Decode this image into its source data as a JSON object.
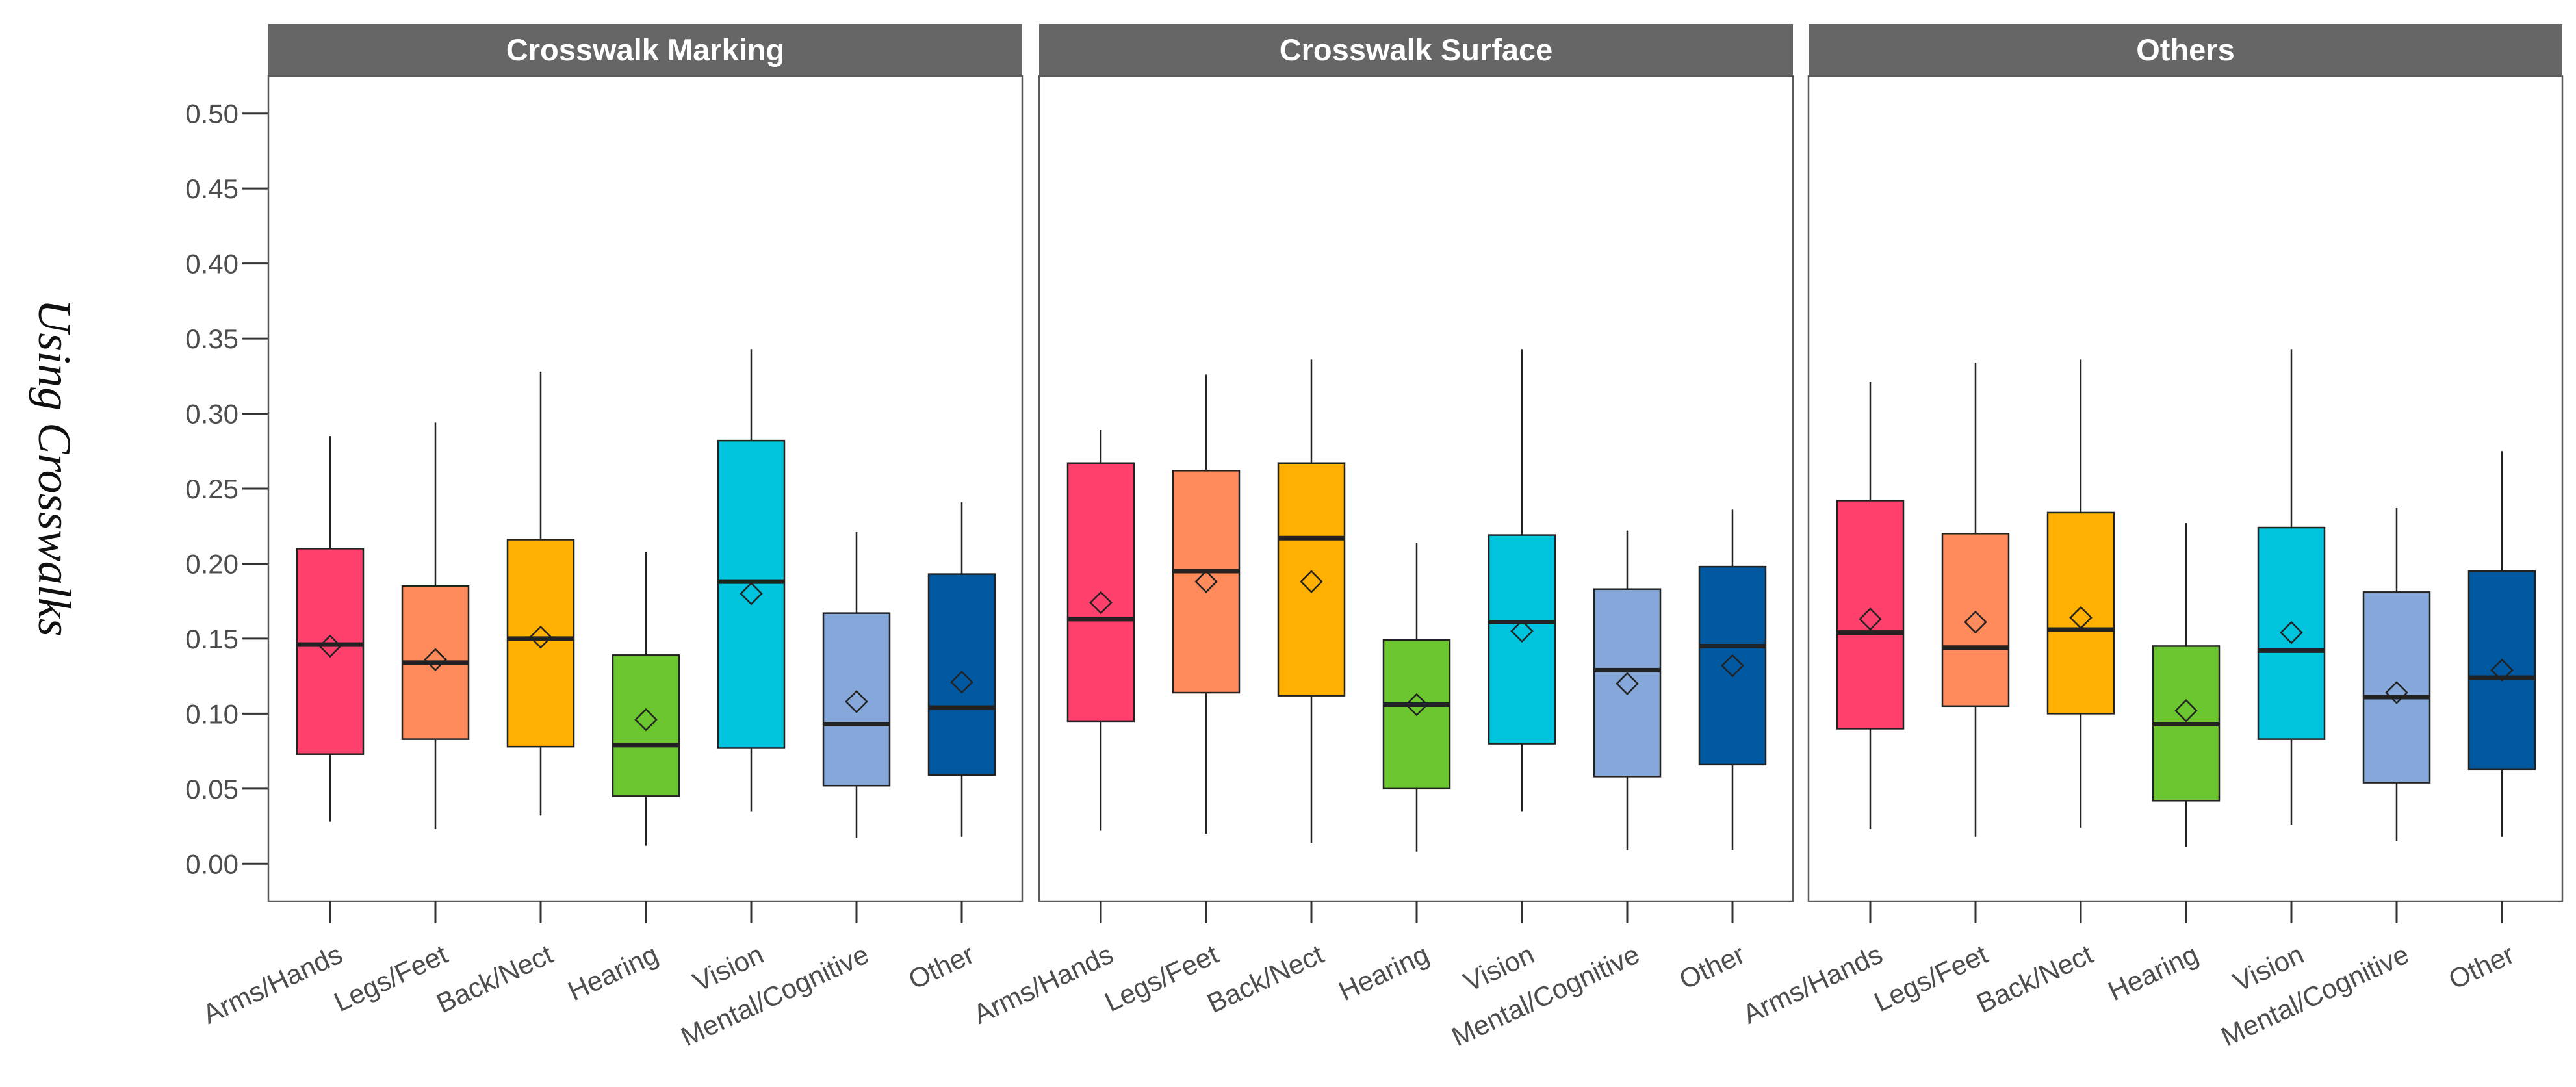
{
  "chart_data": {
    "type": "boxplot",
    "ylabel": "Using Crosswalks",
    "ylim": [
      -0.025,
      0.525
    ],
    "yticks": [
      "0.00",
      "0.05",
      "0.10",
      "0.15",
      "0.20",
      "0.25",
      "0.30",
      "0.35",
      "0.40",
      "0.45",
      "0.50"
    ],
    "categories": [
      "Arms/Hands",
      "Legs/Feet",
      "Back/Nect",
      "Hearing",
      "Vision",
      "Mental/Cognitive",
      "Other"
    ],
    "colors": [
      "#FF3F6C",
      "#FF8A5B",
      "#FFB000",
      "#6CC62F",
      "#00C4DE",
      "#85A7D9",
      "#0058A0"
    ],
    "panels": [
      {
        "title": "Crosswalk Marking",
        "boxes": [
          {
            "min": 0.028,
            "q1": 0.073,
            "median": 0.146,
            "q3": 0.21,
            "max": 0.285,
            "mean": 0.145
          },
          {
            "min": 0.023,
            "q1": 0.083,
            "median": 0.134,
            "q3": 0.185,
            "max": 0.294,
            "mean": 0.136
          },
          {
            "min": 0.032,
            "q1": 0.078,
            "median": 0.15,
            "q3": 0.216,
            "max": 0.328,
            "mean": 0.151
          },
          {
            "min": 0.012,
            "q1": 0.045,
            "median": 0.079,
            "q3": 0.139,
            "max": 0.208,
            "mean": 0.096
          },
          {
            "min": 0.035,
            "q1": 0.077,
            "median": 0.188,
            "q3": 0.282,
            "max": 0.343,
            "mean": 0.18
          },
          {
            "min": 0.017,
            "q1": 0.052,
            "median": 0.093,
            "q3": 0.167,
            "max": 0.221,
            "mean": 0.108
          },
          {
            "min": 0.018,
            "q1": 0.059,
            "median": 0.104,
            "q3": 0.193,
            "max": 0.241,
            "mean": 0.121
          }
        ]
      },
      {
        "title": "Crosswalk Surface",
        "boxes": [
          {
            "min": 0.022,
            "q1": 0.095,
            "median": 0.163,
            "q3": 0.267,
            "max": 0.289,
            "mean": 0.174
          },
          {
            "min": 0.02,
            "q1": 0.114,
            "median": 0.195,
            "q3": 0.262,
            "max": 0.326,
            "mean": 0.188
          },
          {
            "min": 0.014,
            "q1": 0.112,
            "median": 0.217,
            "q3": 0.267,
            "max": 0.336,
            "mean": 0.188
          },
          {
            "min": 0.008,
            "q1": 0.05,
            "median": 0.106,
            "q3": 0.149,
            "max": 0.214,
            "mean": 0.106
          },
          {
            "min": 0.035,
            "q1": 0.08,
            "median": 0.161,
            "q3": 0.219,
            "max": 0.343,
            "mean": 0.155
          },
          {
            "min": 0.009,
            "q1": 0.058,
            "median": 0.129,
            "q3": 0.183,
            "max": 0.222,
            "mean": 0.12
          },
          {
            "min": 0.009,
            "q1": 0.066,
            "median": 0.145,
            "q3": 0.198,
            "max": 0.236,
            "mean": 0.132
          }
        ]
      },
      {
        "title": "Others",
        "boxes": [
          {
            "min": 0.023,
            "q1": 0.09,
            "median": 0.154,
            "q3": 0.242,
            "max": 0.321,
            "mean": 0.163
          },
          {
            "min": 0.018,
            "q1": 0.105,
            "median": 0.144,
            "q3": 0.22,
            "max": 0.334,
            "mean": 0.161
          },
          {
            "min": 0.024,
            "q1": 0.1,
            "median": 0.156,
            "q3": 0.234,
            "max": 0.336,
            "mean": 0.164
          },
          {
            "min": 0.011,
            "q1": 0.042,
            "median": 0.093,
            "q3": 0.145,
            "max": 0.227,
            "mean": 0.102
          },
          {
            "min": 0.026,
            "q1": 0.083,
            "median": 0.142,
            "q3": 0.224,
            "max": 0.343,
            "mean": 0.154
          },
          {
            "min": 0.015,
            "q1": 0.054,
            "median": 0.111,
            "q3": 0.181,
            "max": 0.237,
            "mean": 0.114
          },
          {
            "min": 0.018,
            "q1": 0.063,
            "median": 0.124,
            "q3": 0.195,
            "max": 0.275,
            "mean": 0.129
          }
        ]
      }
    ]
  }
}
